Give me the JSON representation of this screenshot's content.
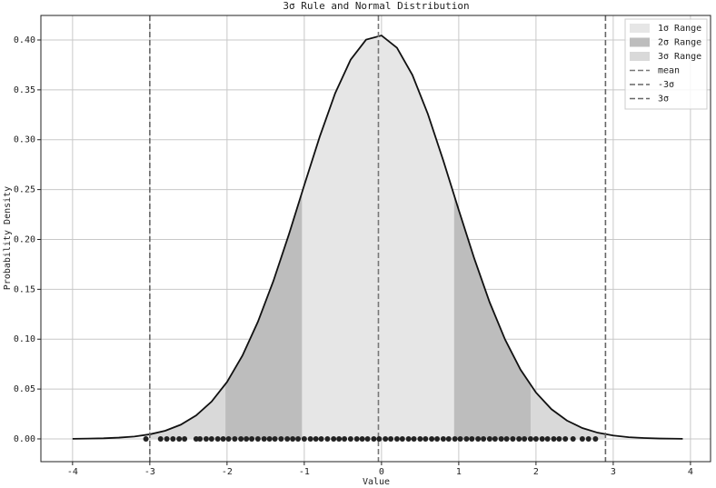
{
  "chart_data": {
    "type": "line",
    "title": "3σ Rule and Normal Distribution",
    "x_label": "Value",
    "y_label": "Probability Density",
    "x": [
      -4.0,
      -3.8,
      -3.6,
      -3.4,
      -3.2,
      -3.0,
      -2.8,
      -2.6,
      -2.4,
      -2.2,
      -2.0,
      -1.8,
      -1.6,
      -1.4,
      -1.2,
      -1.0,
      -0.8,
      -0.6,
      -0.4,
      -0.2,
      0.0,
      0.2,
      0.4,
      0.6,
      0.8,
      1.0,
      1.2,
      1.4,
      1.6,
      1.8,
      2.0,
      2.2,
      2.4,
      2.6,
      2.8,
      3.0,
      3.2,
      3.4,
      3.6,
      3.8,
      3.9
    ],
    "values": [
      0.0001,
      0.0003,
      0.0006,
      0.0013,
      0.0024,
      0.0046,
      0.0082,
      0.0142,
      0.0235,
      0.0374,
      0.0571,
      0.0836,
      0.1175,
      0.1583,
      0.2048,
      0.2544,
      0.303,
      0.3466,
      0.3802,
      0.4003,
      0.4045,
      0.3922,
      0.3649,
      0.3258,
      0.2791,
      0.2295,
      0.1811,
      0.137,
      0.0996,
      0.0694,
      0.0465,
      0.0298,
      0.0184,
      0.0109,
      0.0062,
      0.0034,
      0.0017,
      0.0009,
      0.0004,
      0.0002,
      0.0001
    ],
    "color": "#111111",
    "ranges": [
      {
        "name": "3σ Range",
        "color": "#d9d9d9",
        "from": -3.0,
        "to": 2.9
      },
      {
        "name": "2σ Range",
        "color": "#bdbdbd",
        "from": -2.02,
        "to": 1.93
      },
      {
        "name": "1σ Range",
        "color": "#e6e6e6",
        "from": -1.03,
        "to": 0.94
      }
    ],
    "lines": [
      {
        "name": "mean",
        "color": "#777777",
        "x": -0.04
      },
      {
        "name": "-3σ",
        "color": "#666666",
        "x": -3.0
      },
      {
        "name": "3σ",
        "color": "#666666",
        "x": 2.9
      }
    ],
    "samples": {
      "color": "#222222",
      "y": 0,
      "x": [
        -3.05,
        -2.86,
        -2.78,
        -2.7,
        -2.62,
        -2.55,
        -2.4,
        -2.35,
        -2.27,
        -2.2,
        -2.12,
        -2.05,
        -1.98,
        -1.9,
        -1.82,
        -1.75,
        -1.68,
        -1.6,
        -1.52,
        -1.45,
        -1.38,
        -1.3,
        -1.22,
        -1.15,
        -1.08,
        -1.0,
        -0.92,
        -0.85,
        -0.78,
        -0.7,
        -0.62,
        -0.55,
        -0.48,
        -0.4,
        -0.32,
        -0.25,
        -0.18,
        -0.1,
        -0.03,
        0.05,
        0.12,
        0.2,
        0.27,
        0.35,
        0.42,
        0.5,
        0.57,
        0.65,
        0.72,
        0.8,
        0.87,
        0.95,
        1.02,
        1.1,
        1.17,
        1.25,
        1.32,
        1.4,
        1.47,
        1.55,
        1.62,
        1.7,
        1.78,
        1.85,
        1.93,
        2.0,
        2.08,
        2.15,
        2.23,
        2.3,
        2.38,
        2.48,
        2.6,
        2.68,
        2.77
      ]
    },
    "xlim": [
      -4.41,
      4.26
    ],
    "ylim": [
      -0.0228,
      0.4246
    ],
    "xticks": [
      -4,
      -3,
      -2,
      -1,
      0,
      1,
      2,
      3,
      4
    ],
    "yticks": [
      {
        "value": 0,
        "label": "0.00"
      },
      {
        "value": 0.05,
        "label": "0.05"
      },
      {
        "value": 0.1,
        "label": "0.10"
      },
      {
        "value": 0.15,
        "label": "0.15"
      },
      {
        "value": 0.2,
        "label": "0.20"
      },
      {
        "value": 0.25,
        "label": "0.25"
      },
      {
        "value": 0.3,
        "label": "0.30"
      },
      {
        "value": 0.35,
        "label": "0.35"
      },
      {
        "value": 0.4,
        "label": "0.40"
      }
    ],
    "grid": true,
    "legend": "upper right"
  }
}
